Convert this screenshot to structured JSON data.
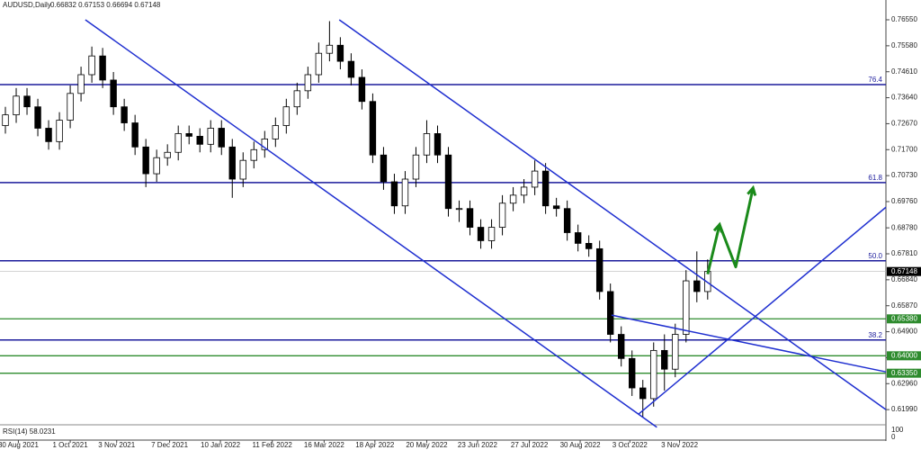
{
  "chart_data": {
    "type": "candlestick",
    "title": "AUDUSD,Daily",
    "header_quote": "0.66832 0.67153 0.66694 0.67148",
    "xlim": [
      0,
      82
    ],
    "xticks": [
      {
        "value": 1.7,
        "label": "30 Aug 2021"
      },
      {
        "value": 6.5,
        "label": "1 Oct 2021"
      },
      {
        "value": 10.8,
        "label": "3 Nov 2021"
      },
      {
        "value": 15.7,
        "label": "7 Dec 2021"
      },
      {
        "value": 20.4,
        "label": "10 Jan 2022"
      },
      {
        "value": 25.2,
        "label": "11 Feb 2022"
      },
      {
        "value": 30,
        "label": "16 Mar 2022"
      },
      {
        "value": 34.7,
        "label": "18 Apr 2022"
      },
      {
        "value": 39.5,
        "label": "20 May 2022"
      },
      {
        "value": 44.2,
        "label": "23 Jun 2022"
      },
      {
        "value": 49,
        "label": "27 Jul 2022"
      },
      {
        "value": 53.7,
        "label": "30 Aug 2022"
      },
      {
        "value": 58.3,
        "label": "3 Oct 2022"
      },
      {
        "value": 62.9,
        "label": "3 Nov 2022"
      }
    ],
    "ylim": [
      0.6149,
      0.7729
    ],
    "yticks": [
      {
        "value": 0.7655,
        "label": "0.76550"
      },
      {
        "value": 0.7558,
        "label": "0.75580"
      },
      {
        "value": 0.7461,
        "label": "0.74610"
      },
      {
        "value": 0.7364,
        "label": "0.73640"
      },
      {
        "value": 0.7267,
        "label": "0.72670"
      },
      {
        "value": 0.717,
        "label": "0.71700"
      },
      {
        "value": 0.7073,
        "label": "0.70730"
      },
      {
        "value": 0.6976,
        "label": "0.69760"
      },
      {
        "value": 0.6878,
        "label": "0.68780"
      },
      {
        "value": 0.6781,
        "label": "0.67810"
      },
      {
        "value": 0.6684,
        "label": "0.66840"
      },
      {
        "value": 0.6587,
        "label": "0.65870"
      },
      {
        "value": 0.649,
        "label": "0.64900"
      },
      {
        "value": 0.6393,
        "label": "0.63930"
      },
      {
        "value": 0.6296,
        "label": "0.62960"
      },
      {
        "value": 0.6199,
        "label": "0.61990"
      }
    ],
    "open": [
      0.726,
      0.73,
      0.737,
      0.733,
      0.725,
      0.72,
      0.728,
      0.738,
      0.745,
      0.752,
      0.743,
      0.733,
      0.727,
      0.718,
      0.708,
      0.714,
      0.716,
      0.723,
      0.722,
      0.719,
      0.725,
      0.718,
      0.706,
      0.713,
      0.717,
      0.721,
      0.726,
      0.733,
      0.739,
      0.745,
      0.753,
      0.756,
      0.75,
      0.744,
      0.735,
      0.715,
      0.705,
      0.696,
      0.706,
      0.715,
      0.723,
      0.715,
      0.695,
      0.695,
      0.688,
      0.683,
      0.688,
      0.697,
      0.7,
      0.703,
      0.709,
      0.696,
      0.695,
      0.686,
      0.682,
      0.68,
      0.664,
      0.648,
      0.639,
      0.628,
      0.624,
      0.642,
      0.635,
      0.648,
      0.668,
      0.664
    ],
    "high": [
      0.733,
      0.74,
      0.74,
      0.736,
      0.728,
      0.731,
      0.741,
      0.748,
      0.7555,
      0.755,
      0.746,
      0.736,
      0.73,
      0.721,
      0.717,
      0.719,
      0.726,
      0.726,
      0.725,
      0.728,
      0.728,
      0.721,
      0.716,
      0.72,
      0.724,
      0.729,
      0.736,
      0.742,
      0.748,
      0.757,
      0.765,
      0.759,
      0.753,
      0.747,
      0.738,
      0.718,
      0.708,
      0.709,
      0.718,
      0.728,
      0.726,
      0.718,
      0.698,
      0.698,
      0.691,
      0.691,
      0.7,
      0.703,
      0.706,
      0.713,
      0.712,
      0.699,
      0.698,
      0.689,
      0.685,
      0.683,
      0.667,
      0.651,
      0.642,
      0.631,
      0.645,
      0.648,
      0.652,
      0.672,
      0.679,
      0.676
    ],
    "low": [
      0.723,
      0.727,
      0.73,
      0.722,
      0.717,
      0.717,
      0.725,
      0.735,
      0.742,
      0.74,
      0.73,
      0.724,
      0.715,
      0.703,
      0.705,
      0.711,
      0.713,
      0.719,
      0.716,
      0.716,
      0.715,
      0.699,
      0.703,
      0.71,
      0.714,
      0.718,
      0.723,
      0.73,
      0.736,
      0.742,
      0.75,
      0.747,
      0.741,
      0.732,
      0.712,
      0.702,
      0.693,
      0.693,
      0.703,
      0.712,
      0.712,
      0.692,
      0.69,
      0.685,
      0.68,
      0.68,
      0.685,
      0.694,
      0.697,
      0.7,
      0.693,
      0.692,
      0.683,
      0.679,
      0.677,
      0.661,
      0.645,
      0.636,
      0.625,
      0.617,
      0.621,
      0.627,
      0.632,
      0.645,
      0.66,
      0.661
    ],
    "close": [
      0.73,
      0.737,
      0.733,
      0.725,
      0.72,
      0.728,
      0.738,
      0.745,
      0.752,
      0.743,
      0.733,
      0.727,
      0.718,
      0.708,
      0.714,
      0.716,
      0.723,
      0.722,
      0.719,
      0.725,
      0.718,
      0.706,
      0.713,
      0.717,
      0.721,
      0.726,
      0.733,
      0.739,
      0.745,
      0.753,
      0.756,
      0.75,
      0.744,
      0.735,
      0.715,
      0.705,
      0.696,
      0.706,
      0.715,
      0.723,
      0.715,
      0.695,
      0.695,
      0.688,
      0.683,
      0.688,
      0.697,
      0.7,
      0.703,
      0.709,
      0.696,
      0.695,
      0.686,
      0.682,
      0.68,
      0.664,
      0.648,
      0.639,
      0.628,
      0.624,
      0.642,
      0.635,
      0.648,
      0.668,
      0.664,
      0.6715
    ],
    "fib_levels": [
      {
        "value": 0.7413,
        "label": "76.4"
      },
      {
        "value": 0.7047,
        "label": "61.8"
      },
      {
        "value": 0.6755,
        "label": "50.0"
      },
      {
        "value": 0.6459,
        "label": "38.2"
      }
    ],
    "fib_color": "#1c1c9c",
    "support_levels": [
      {
        "value": 0.6538,
        "label": "0.65380"
      },
      {
        "value": 0.64,
        "label": "0.64000"
      },
      {
        "value": 0.6335,
        "label": "0.63350"
      }
    ],
    "support_color": "#2e8b2e",
    "current_price": {
      "value": 0.67148,
      "label": "0.67148"
    },
    "trendline_color": "#1f2fd0",
    "trendlines": [
      {
        "x": [
          7.9,
          60.8
        ],
        "y": [
          0.7655,
          0.6133
        ]
      },
      {
        "x": [
          31.4,
          82
        ],
        "y": [
          0.7655,
          0.6199
        ]
      },
      {
        "x": [
          59.1,
          82
        ],
        "y": [
          0.6182,
          0.6955
        ]
      },
      {
        "x": [
          56.6,
          82
        ],
        "y": [
          0.6552,
          0.634
        ]
      }
    ],
    "projection": {
      "color": "#1a8a1a",
      "x": [
        65.5,
        66.6,
        68.1,
        69.7
      ],
      "y": [
        0.6705,
        0.689,
        0.6732,
        0.7027
      ]
    },
    "rsi_label": "RSI(14) 58.0231",
    "rsi_ticks": [
      100,
      0
    ]
  }
}
